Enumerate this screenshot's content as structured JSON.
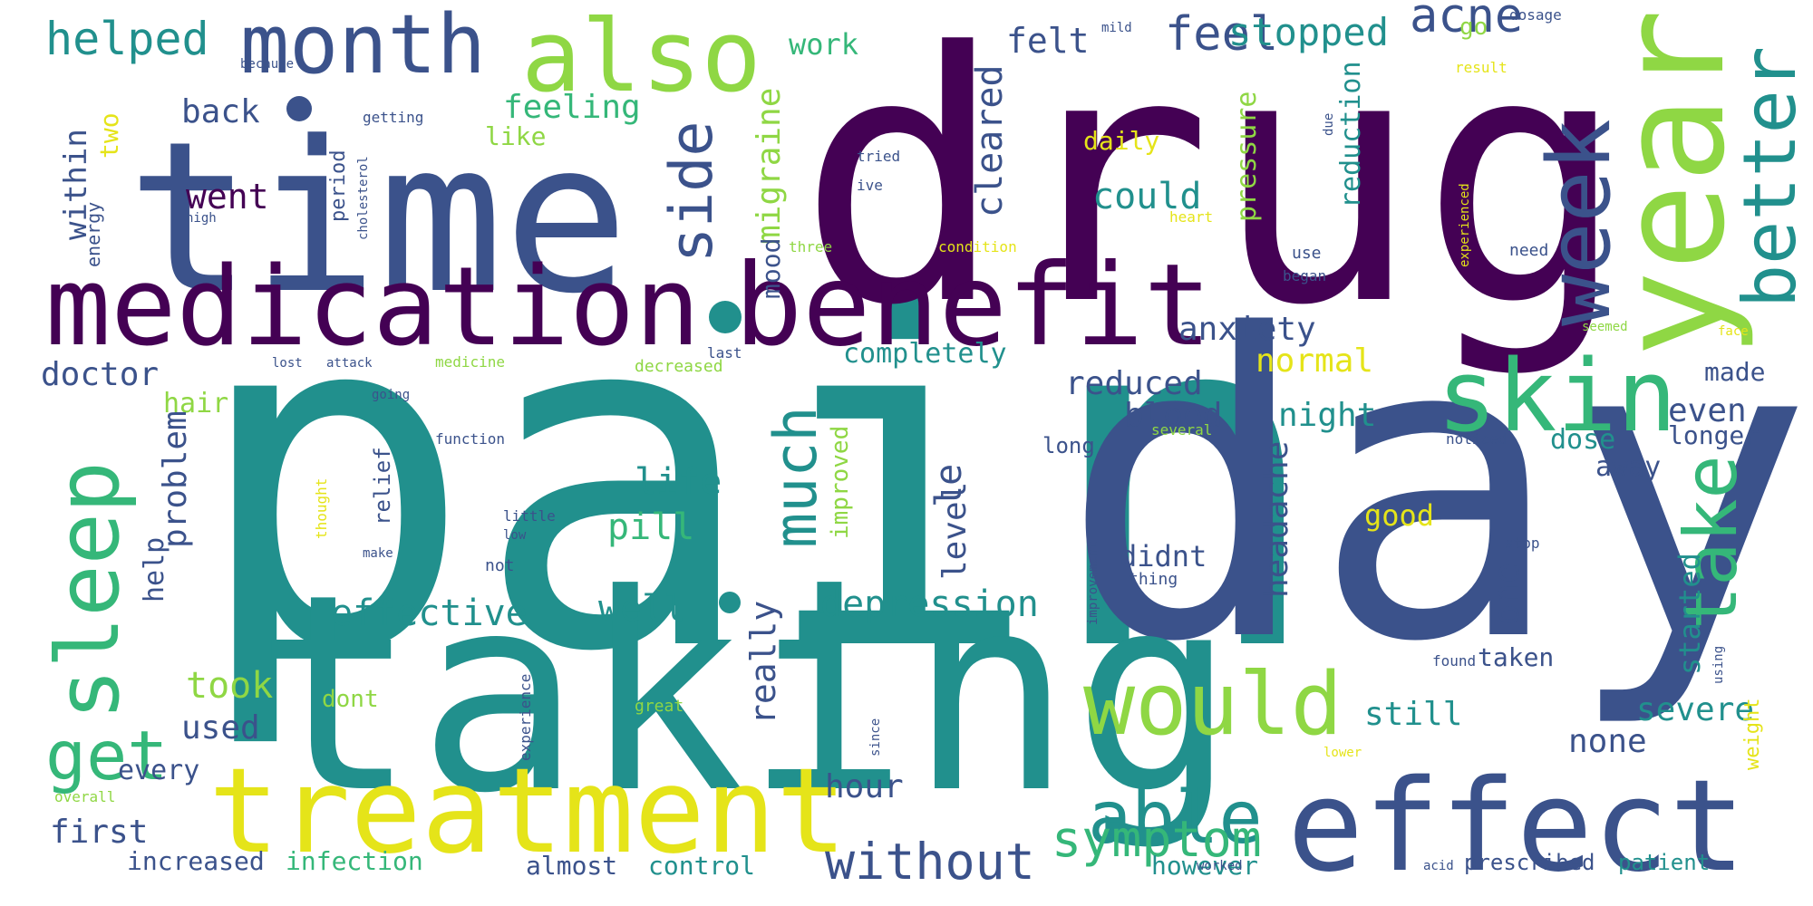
{
  "words": [
    {
      "text": "pain",
      "color": "#21908d"
    },
    {
      "text": "day",
      "color": "#3b528b"
    },
    {
      "text": "drug",
      "color": "#440154"
    },
    {
      "text": "taking",
      "color": "#21908d"
    },
    {
      "text": "time",
      "color": "#3b528b"
    },
    {
      "text": "medication",
      "color": "#440154"
    },
    {
      "text": "benefit",
      "color": "#440154"
    },
    {
      "text": "effect",
      "color": "#3b528b"
    },
    {
      "text": "treatment",
      "color": "#e5e419"
    },
    {
      "text": "year",
      "color": "#8fd744"
    },
    {
      "text": "also",
      "color": "#8fd744"
    },
    {
      "text": "month",
      "color": "#3b528b"
    },
    {
      "text": "would",
      "color": "#8fd744"
    },
    {
      "text": "skin",
      "color": "#35b779"
    },
    {
      "text": "sleep",
      "color": "#35b779"
    },
    {
      "text": "week",
      "color": "#3b528b"
    },
    {
      "text": "better",
      "color": "#21908d"
    },
    {
      "text": "take",
      "color": "#35b779"
    },
    {
      "text": "get",
      "color": "#35b779"
    },
    {
      "text": "able",
      "color": "#21908d"
    },
    {
      "text": "side",
      "color": "#3b528b"
    },
    {
      "text": "much",
      "color": "#21908d"
    },
    {
      "text": "without",
      "color": "#3b528b"
    },
    {
      "text": "symptom",
      "color": "#35b779"
    },
    {
      "text": "helped",
      "color": "#21908d"
    },
    {
      "text": "feel",
      "color": "#3b528b"
    },
    {
      "text": "acne",
      "color": "#3b528b"
    },
    {
      "text": "stopped",
      "color": "#21908d"
    },
    {
      "text": "felt",
      "color": "#3b528b"
    },
    {
      "text": "work",
      "color": "#35b779"
    },
    {
      "text": "feeling",
      "color": "#35b779"
    },
    {
      "text": "back",
      "color": "#3b528b"
    },
    {
      "text": "like",
      "color": "#8fd744"
    },
    {
      "text": "two",
      "color": "#e5e419"
    },
    {
      "text": "within",
      "color": "#3b528b"
    },
    {
      "text": "energy",
      "color": "#3b528b"
    },
    {
      "text": "went",
      "color": "#440154"
    },
    {
      "text": "period",
      "color": "#3b528b"
    },
    {
      "text": "migraine",
      "color": "#8fd744"
    },
    {
      "text": "mood",
      "color": "#3b528b"
    },
    {
      "text": "cleared",
      "color": "#3b528b"
    },
    {
      "text": "could",
      "color": "#21908d"
    },
    {
      "text": "pressure",
      "color": "#8fd744"
    },
    {
      "text": "reduction",
      "color": "#21908d"
    },
    {
      "text": "anxiety",
      "color": "#3b528b"
    },
    {
      "text": "completely",
      "color": "#21908d"
    },
    {
      "text": "normal",
      "color": "#e5e419"
    },
    {
      "text": "doctor",
      "color": "#3b528b"
    },
    {
      "text": "hair",
      "color": "#8fd744"
    },
    {
      "text": "reduced",
      "color": "#3b528b"
    },
    {
      "text": "blood",
      "color": "#3b528b"
    },
    {
      "text": "night",
      "color": "#21908d"
    },
    {
      "text": "even",
      "color": "#3b528b"
    },
    {
      "text": "made",
      "color": "#3b528b"
    },
    {
      "text": "longer",
      "color": "#3b528b"
    },
    {
      "text": "daily",
      "color": "#e5e419"
    },
    {
      "text": "problem",
      "color": "#3b528b"
    },
    {
      "text": "help",
      "color": "#3b528b"
    },
    {
      "text": "life",
      "color": "#21908d"
    },
    {
      "text": "pill",
      "color": "#35b779"
    },
    {
      "text": "le",
      "color": "#3b528b"
    },
    {
      "text": "level",
      "color": "#3b528b"
    },
    {
      "text": "relief",
      "color": "#3b528b"
    },
    {
      "text": "headache",
      "color": "#3b528b"
    },
    {
      "text": "long",
      "color": "#3b528b"
    },
    {
      "text": "dose",
      "color": "#21908d"
    },
    {
      "text": "good",
      "color": "#e5e419"
    },
    {
      "text": "away",
      "color": "#3b528b"
    },
    {
      "text": "effective",
      "color": "#21908d"
    },
    {
      "text": "well",
      "color": "#21908d"
    },
    {
      "text": "depression",
      "color": "#21908d"
    },
    {
      "text": "really",
      "color": "#3b528b"
    },
    {
      "text": "improved",
      "color": "#8fd744"
    },
    {
      "text": "didnt",
      "color": "#3b528b"
    },
    {
      "text": "one",
      "color": "#3b528b"
    },
    {
      "text": "started",
      "color": "#21908d"
    },
    {
      "text": "taken",
      "color": "#3b528b"
    },
    {
      "text": "still",
      "color": "#21908d"
    },
    {
      "text": "severe",
      "color": "#21908d"
    },
    {
      "text": "none",
      "color": "#3b528b"
    },
    {
      "text": "took",
      "color": "#8fd744"
    },
    {
      "text": "used",
      "color": "#3b528b"
    },
    {
      "text": "dont",
      "color": "#8fd744"
    },
    {
      "text": "every",
      "color": "#3b528b"
    },
    {
      "text": "hour",
      "color": "#3b528b"
    },
    {
      "text": "first",
      "color": "#3b528b"
    },
    {
      "text": "increased",
      "color": "#3b528b"
    },
    {
      "text": "infection",
      "color": "#35b779"
    },
    {
      "text": "almost",
      "color": "#3b528b"
    },
    {
      "text": "control",
      "color": "#21908d"
    },
    {
      "text": "however",
      "color": "#21908d"
    },
    {
      "text": "prescribed",
      "color": "#3b528b"
    },
    {
      "text": "patient",
      "color": "#21908d"
    },
    {
      "text": "weight",
      "color": "#e5e419"
    },
    {
      "text": "go",
      "color": "#8fd744"
    },
    {
      "text": "dosage",
      "color": "#3b528b"
    },
    {
      "text": "result",
      "color": "#e5e419"
    },
    {
      "text": "mild",
      "color": "#3b528b"
    },
    {
      "text": "because",
      "color": "#3b528b"
    },
    {
      "text": "getting",
      "color": "#3b528b"
    },
    {
      "text": "cholesterol",
      "color": "#3b528b"
    },
    {
      "text": "tried",
      "color": "#3b528b"
    },
    {
      "text": "ive",
      "color": "#3b528b"
    },
    {
      "text": "heart",
      "color": "#e5e419"
    },
    {
      "text": "three",
      "color": "#8fd744"
    },
    {
      "text": "condition",
      "color": "#e5e419"
    },
    {
      "text": "need",
      "color": "#3b528b"
    },
    {
      "text": "use",
      "color": "#3b528b"
    },
    {
      "text": "began",
      "color": "#3b528b"
    },
    {
      "text": "seemed",
      "color": "#8fd744"
    },
    {
      "text": "face",
      "color": "#e5e419"
    },
    {
      "text": "last",
      "color": "#3b528b"
    },
    {
      "text": "lost",
      "color": "#3b528b"
    },
    {
      "text": "attack",
      "color": "#3b528b"
    },
    {
      "text": "medicine",
      "color": "#8fd744"
    },
    {
      "text": "decreased",
      "color": "#8fd744"
    },
    {
      "text": "going",
      "color": "#3b528b"
    },
    {
      "text": "function",
      "color": "#3b528b"
    },
    {
      "text": "several",
      "color": "#8fd744"
    },
    {
      "text": "noticed",
      "color": "#3b528b"
    },
    {
      "text": "thought",
      "color": "#e5e419"
    },
    {
      "text": "little",
      "color": "#3b528b"
    },
    {
      "text": "low",
      "color": "#3b528b"
    },
    {
      "text": "not",
      "color": "#3b528b"
    },
    {
      "text": "make",
      "color": "#3b528b"
    },
    {
      "text": "improvement",
      "color": "#3b528b"
    },
    {
      "text": "thing",
      "color": "#3b528b"
    },
    {
      "text": "stop",
      "color": "#3b528b"
    },
    {
      "text": "found",
      "color": "#3b528b"
    },
    {
      "text": "using",
      "color": "#3b528b"
    },
    {
      "text": "since",
      "color": "#3b528b"
    },
    {
      "text": "great",
      "color": "#8fd744"
    },
    {
      "text": "experience",
      "color": "#3b528b"
    },
    {
      "text": "lower",
      "color": "#e5e419"
    },
    {
      "text": "worked",
      "color": "#3b528b"
    },
    {
      "text": "acid",
      "color": "#3b528b"
    },
    {
      "text": "overall",
      "color": "#8fd744"
    },
    {
      "text": "due",
      "color": "#3b528b"
    },
    {
      "text": "experienced",
      "color": "#e5e419"
    },
    {
      "text": "high",
      "color": "#3b528b"
    }
  ],
  "palette": {
    "background": "#ffffff",
    "c1": "#440154",
    "c2": "#3b528b",
    "c3": "#21908d",
    "c4": "#35b779",
    "c5": "#8fd744",
    "c6": "#e5e419"
  }
}
